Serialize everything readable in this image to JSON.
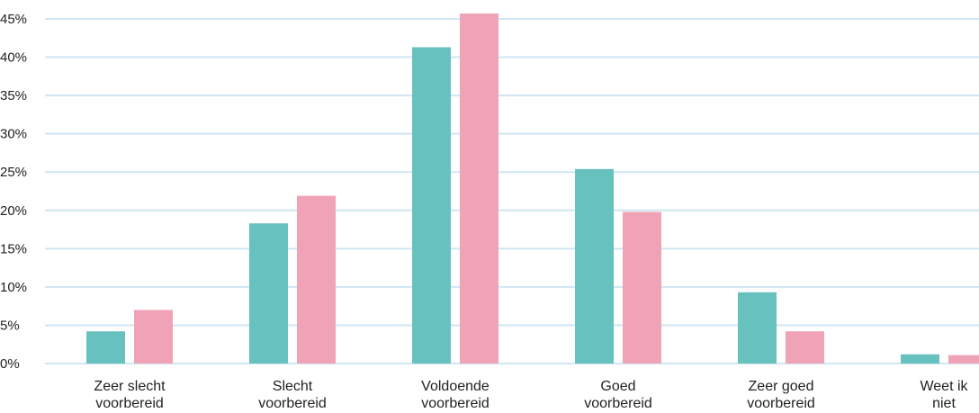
{
  "chart_data": {
    "type": "bar",
    "title": "",
    "xlabel": "",
    "ylabel": "",
    "ylim": [
      0,
      45
    ],
    "yticks": [
      0,
      5,
      10,
      15,
      20,
      25,
      30,
      35,
      40,
      45
    ],
    "ytick_labels": [
      "0%",
      "5%",
      "10%",
      "15%",
      "20%",
      "25%",
      "30%",
      "35%",
      "40%",
      "45%"
    ],
    "grid": true,
    "legend": "none",
    "categories": [
      [
        "Zeer slecht",
        "voorbereid"
      ],
      [
        "Slecht",
        "voorbereid"
      ],
      [
        "Voldoende",
        "voorbereid"
      ],
      [
        "Goed",
        "voorbereid"
      ],
      [
        "Zeer goed",
        "voorbereid"
      ],
      [
        "Weet ik",
        "niet"
      ]
    ],
    "series": [
      {
        "values": [
          4.2,
          18.3,
          41.3,
          25.4,
          9.3,
          1.2
        ]
      },
      {
        "values": [
          7.0,
          21.9,
          45.7,
          19.8,
          4.2,
          1.1
        ]
      }
    ],
    "colors": {
      "series": [
        "#67c1bf",
        "#f0a3b6"
      ],
      "grid": "#cfe6f3",
      "axis": "#cfe6f3",
      "text": "#222222"
    }
  }
}
